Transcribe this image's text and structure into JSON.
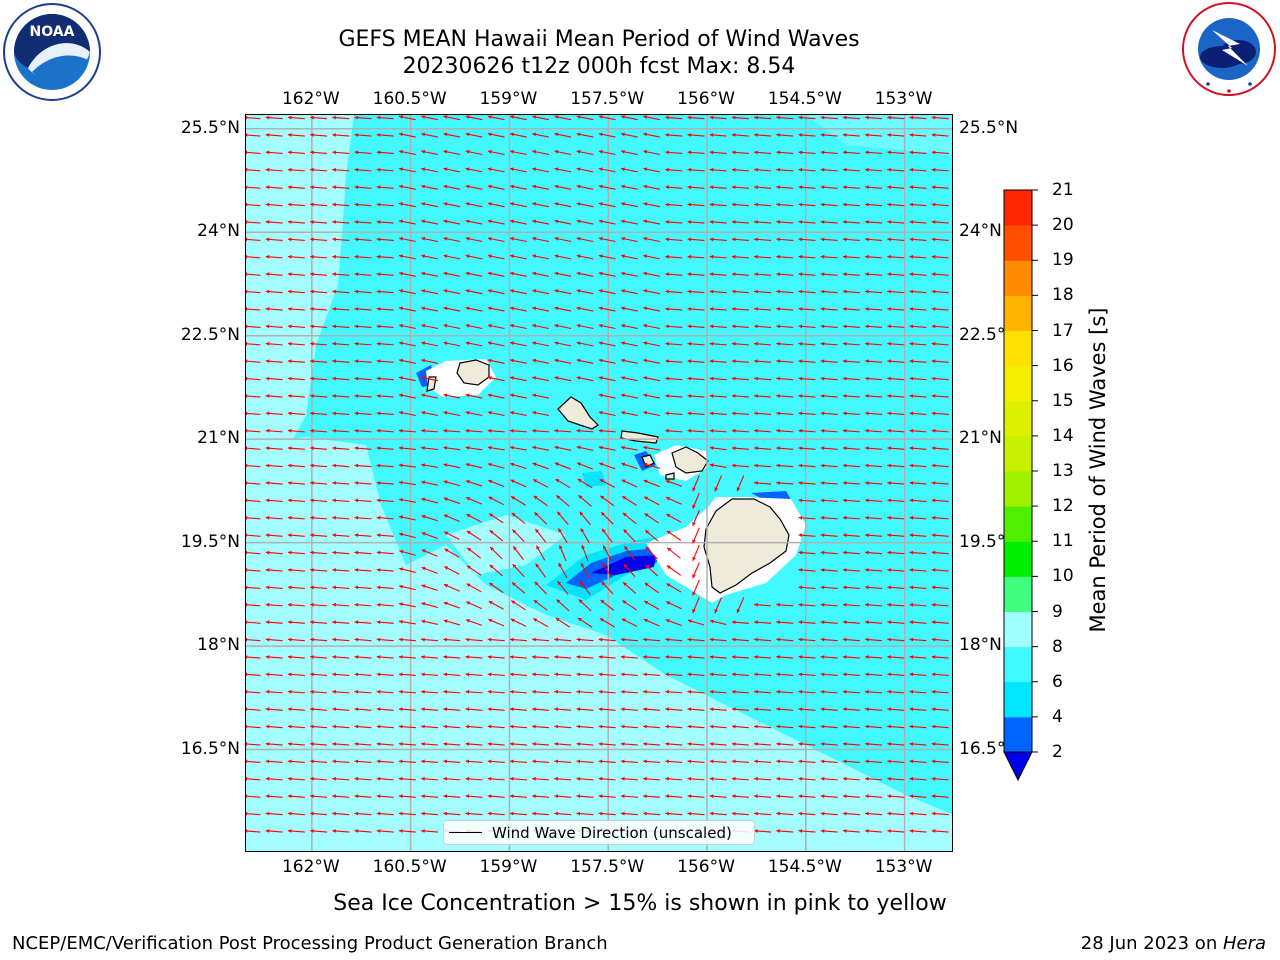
{
  "header": {
    "title_line1": "GEFS MEAN Hawaii Mean Period of Wind Waves",
    "title_line2": "20230626 t12z 000h fcst   Max: 8.54"
  },
  "logos": {
    "left": {
      "name": "NOAA",
      "ring_text": "NATIONAL OCEANIC AND ATMOSPHERIC ADMINISTRATION U.S. DEPARTMENT OF COMMERCE"
    },
    "right": {
      "ring_text": "NATIONAL WEATHER SERVICE"
    }
  },
  "map": {
    "lon_ticks": [
      "162°W",
      "160.5°W",
      "159°W",
      "157.5°W",
      "156°W",
      "154.5°W",
      "153°W"
    ],
    "lat_ticks": [
      "25.5°N",
      "24°N",
      "22.5°N",
      "21°N",
      "19.5°N",
      "18°N",
      "16.5°N"
    ],
    "lon_values": [
      -162,
      -160.5,
      -159,
      -157.5,
      -156,
      -154.5,
      -153
    ],
    "lat_values": [
      25.5,
      24,
      22.5,
      21,
      19.5,
      18,
      16.5
    ],
    "lon_range": [
      -163,
      -152.25
    ],
    "lat_range": [
      15,
      25.7
    ],
    "legend_label": "Wind Wave Direction (unscaled)",
    "arrow_color": "#ff0000",
    "land_color": "#eeebda",
    "islands": [
      "Kauai",
      "Oahu",
      "Molokai",
      "Maui",
      "Hawaii"
    ],
    "dominant_period_range_s": [
      6,
      8
    ],
    "max_value_s": 8.54
  },
  "colorbar": {
    "label": "Mean Period of Wind Waves [s]",
    "tick_labels": [
      "2",
      "4",
      "6",
      "8",
      "9",
      "10",
      "11",
      "12",
      "13",
      "14",
      "15",
      "16",
      "17",
      "18",
      "19",
      "20",
      "21"
    ],
    "levels": [
      2,
      4,
      6,
      8,
      9,
      10,
      11,
      12,
      13,
      14,
      15,
      16,
      17,
      18,
      19,
      20,
      21
    ],
    "colors": [
      "#0064ff",
      "#00e6ff",
      "#40f8ff",
      "#a0ffff",
      "#40ff80",
      "#00ee00",
      "#50ee00",
      "#a0f000",
      "#c8f000",
      "#dcf000",
      "#f0f000",
      "#ffe000",
      "#ffb400",
      "#ff8c00",
      "#ff5000",
      "#ff2800",
      "#ff0000"
    ],
    "under_color": "#0000ee",
    "extend": "min"
  },
  "footer": {
    "sea_ice_note": "Sea Ice Concentration > 15% is shown in pink to yellow",
    "left": "NCEP/EMC/Verification Post Processing Product Generation Branch",
    "right_prefix": "28 Jun 2023 on ",
    "right_machine": "Hera"
  }
}
